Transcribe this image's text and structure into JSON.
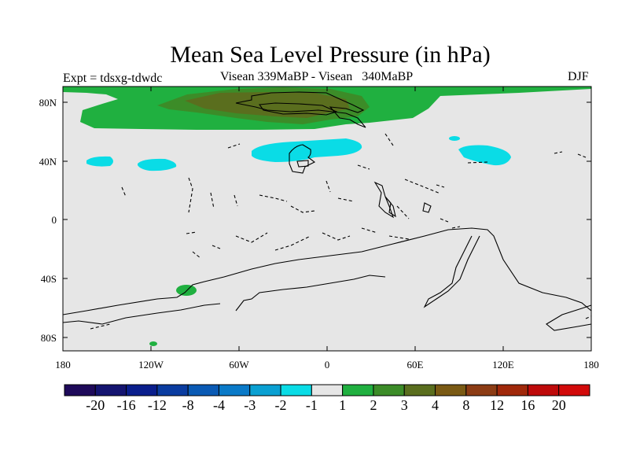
{
  "title": "Mean Sea Level Pressure (in hPa)",
  "subtitle_left": "Expt = tdsxg-tdwdc",
  "subtitle_center": "Visean 339MaBP - Visean   340MaBP",
  "subtitle_right": "DJF",
  "map": {
    "background_color": "#e6e6e6",
    "coastline_color": "#000000",
    "x_ticks": [
      "180",
      "120W",
      "60W",
      "0",
      "60E",
      "120E",
      "180"
    ],
    "y_ticks": [
      "80N",
      "40N",
      "0",
      "40S",
      "80S"
    ]
  },
  "colorbar": {
    "colors": [
      "#1e0a5a",
      "#141470",
      "#0a1e8c",
      "#0a3ca0",
      "#0a5ab4",
      "#0a7ac8",
      "#0aa0d2",
      "#0adce6",
      "#e6e6e6",
      "#20b040",
      "#3c8c28",
      "#5a6e1e",
      "#7a5a14",
      "#8c3c14",
      "#a0280a",
      "#be0a0a",
      "#d20a0a"
    ],
    "labels": [
      "-20",
      "-16",
      "-12",
      "-8",
      "-4",
      "-3",
      "-2",
      "-1",
      "1",
      "2",
      "3",
      "4",
      "8",
      "12",
      "16",
      "20"
    ]
  }
}
